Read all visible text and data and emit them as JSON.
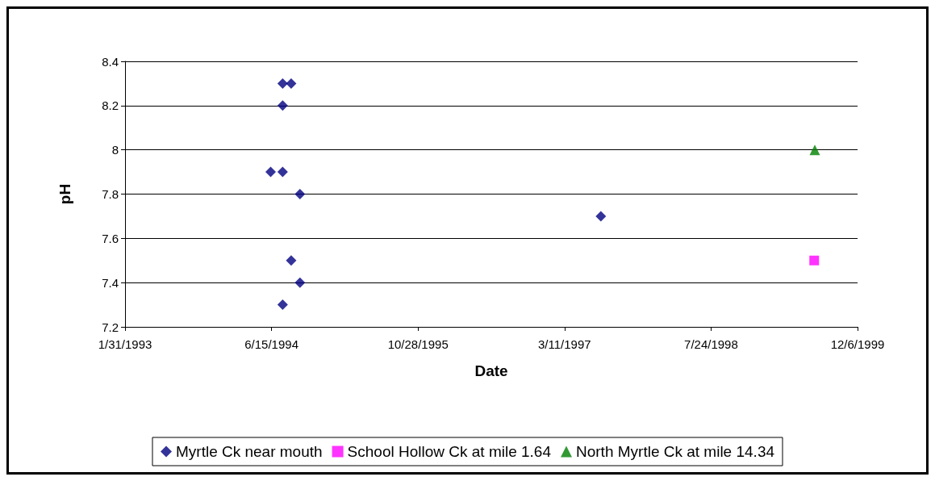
{
  "chart_data": {
    "type": "scatter",
    "xlabel": "Date",
    "ylabel": "pH",
    "xlim": [
      "1993-01-31",
      "1999-12-06"
    ],
    "xticks": [
      {
        "value": "1993-01-31",
        "label": "1/31/1993"
      },
      {
        "value": "1994-06-15",
        "label": "6/15/1994"
      },
      {
        "value": "1995-10-28",
        "label": "10/28/1995"
      },
      {
        "value": "1997-03-11",
        "label": "3/11/1997"
      },
      {
        "value": "1998-07-24",
        "label": "7/24/1998"
      },
      {
        "value": "1999-12-06",
        "label": "12/6/1999"
      }
    ],
    "ylim": [
      7.2,
      8.4
    ],
    "yticks": [
      7.2,
      7.4,
      7.6,
      7.8,
      8,
      8.2,
      8.4
    ],
    "grid": "y",
    "legend": "bottom",
    "series": [
      {
        "name": "Myrtle Ck near mouth",
        "color": "#000080",
        "marker": "diamond",
        "x": [
          "1994-06-12",
          "1994-07-23",
          "1994-07-23",
          "1994-07-23",
          "1994-07-23",
          "1994-08-21",
          "1994-08-21",
          "1994-09-20",
          "1994-09-20",
          "1997-07-13"
        ],
        "values": [
          7.9,
          8.3,
          8.2,
          7.9,
          7.3,
          8.3,
          7.5,
          7.8,
          7.4,
          7.7
        ]
      },
      {
        "name": "School Hollow Ck at mile 1.64",
        "color": "#ff00ff",
        "marker": "square",
        "x": [
          "1999-07-11"
        ],
        "values": [
          7.5
        ]
      },
      {
        "name": "North Myrtle Ck at mile 14.34",
        "color": "#008000",
        "marker": "triangle",
        "x": [
          "1999-07-13"
        ],
        "values": [
          8
        ]
      }
    ]
  }
}
